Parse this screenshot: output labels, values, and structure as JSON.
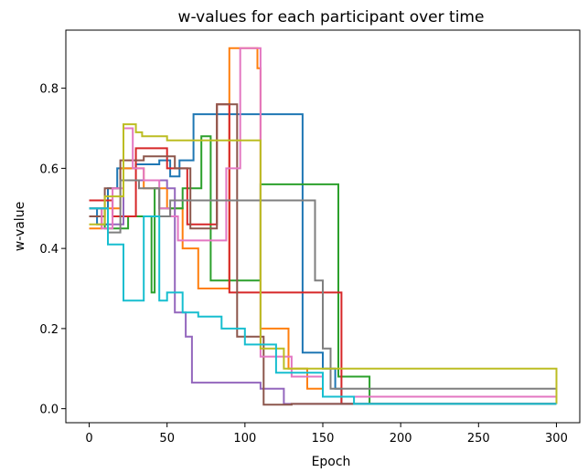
{
  "chart_data": {
    "type": "line",
    "title": "w-values for each participant over time",
    "xlabel": "Epoch",
    "ylabel": "w-value",
    "xlim": [
      -15,
      315
    ],
    "ylim": [
      -0.035,
      0.945
    ],
    "xticks": [
      0,
      50,
      100,
      150,
      200,
      250,
      300
    ],
    "yticks": [
      0.0,
      0.2,
      0.4,
      0.6,
      0.8
    ],
    "ytick_labels": [
      "0.0",
      "0.2",
      "0.4",
      "0.6",
      "0.8"
    ],
    "grid": false,
    "legend": "none",
    "step": true,
    "series": [
      {
        "color": "#1f77b4",
        "x": [
          0,
          5,
          12,
          18,
          30,
          45,
          52,
          58,
          67,
          85,
          105,
          135,
          137,
          141,
          150,
          158,
          162,
          300
        ],
        "y": [
          0.5,
          0.46,
          0.55,
          0.6,
          0.61,
          0.62,
          0.58,
          0.62,
          0.735,
          0.735,
          0.735,
          0.735,
          0.14,
          0.14,
          0.1,
          0.05,
          0.012,
          0.012
        ]
      },
      {
        "color": "#ff7f0e",
        "x": [
          0,
          8,
          20,
          35,
          50,
          60,
          70,
          90,
          100,
          108,
          110,
          128,
          140,
          150,
          300
        ],
        "y": [
          0.45,
          0.5,
          0.6,
          0.55,
          0.5,
          0.4,
          0.3,
          0.9,
          0.9,
          0.85,
          0.2,
          0.1,
          0.05,
          0.03,
          0.012
        ]
      },
      {
        "color": "#2ca02c",
        "x": [
          0,
          10,
          25,
          40,
          42,
          45,
          60,
          70,
          72,
          75,
          78,
          100,
          110,
          158,
          160,
          170,
          180,
          300
        ],
        "y": [
          0.5,
          0.45,
          0.48,
          0.29,
          0.55,
          0.5,
          0.55,
          0.55,
          0.68,
          0.68,
          0.32,
          0.32,
          0.56,
          0.56,
          0.08,
          0.08,
          0.012,
          0.012
        ]
      },
      {
        "color": "#d62728",
        "x": [
          0,
          10,
          15,
          30,
          50,
          63,
          78,
          82,
          86,
          90,
          95,
          110,
          140,
          145,
          160,
          162,
          300
        ],
        "y": [
          0.52,
          0.52,
          0.48,
          0.65,
          0.6,
          0.46,
          0.46,
          0.76,
          0.76,
          0.29,
          0.29,
          0.29,
          0.29,
          0.29,
          0.29,
          0.012,
          0.012
        ]
      },
      {
        "color": "#9467bd",
        "x": [
          0,
          12,
          22,
          35,
          50,
          55,
          62,
          66,
          80,
          90,
          110,
          125,
          300
        ],
        "y": [
          0.5,
          0.46,
          0.57,
          0.57,
          0.55,
          0.24,
          0.18,
          0.065,
          0.065,
          0.065,
          0.05,
          0.012,
          0.012
        ]
      },
      {
        "color": "#8c564b",
        "x": [
          0,
          10,
          20,
          35,
          48,
          55,
          65,
          78,
          82,
          85,
          95,
          110,
          112,
          130,
          300
        ],
        "y": [
          0.48,
          0.55,
          0.62,
          0.63,
          0.63,
          0.6,
          0.45,
          0.45,
          0.76,
          0.76,
          0.18,
          0.18,
          0.01,
          0.012,
          0.012
        ]
      },
      {
        "color": "#e377c2",
        "x": [
          0,
          8,
          15,
          22,
          28,
          35,
          45,
          52,
          57,
          62,
          88,
          92,
          97,
          101,
          110,
          130,
          150,
          300
        ],
        "y": [
          0.5,
          0.45,
          0.55,
          0.7,
          0.6,
          0.57,
          0.5,
          0.48,
          0.42,
          0.42,
          0.6,
          0.6,
          0.9,
          0.9,
          0.13,
          0.08,
          0.03,
          0.012
        ]
      },
      {
        "color": "#7f7f7f",
        "x": [
          0,
          12,
          20,
          32,
          45,
          52,
          56,
          60,
          80,
          100,
          120,
          143,
          145,
          150,
          155,
          300
        ],
        "y": [
          0.5,
          0.44,
          0.57,
          0.55,
          0.48,
          0.52,
          0.52,
          0.52,
          0.52,
          0.52,
          0.52,
          0.52,
          0.32,
          0.15,
          0.05,
          0.012
        ]
      },
      {
        "color": "#bcbd22",
        "x": [
          0,
          10,
          22,
          30,
          34,
          38,
          50,
          65,
          90,
          105,
          110,
          125,
          300
        ],
        "y": [
          0.46,
          0.53,
          0.71,
          0.69,
          0.68,
          0.68,
          0.67,
          0.67,
          0.67,
          0.67,
          0.15,
          0.1,
          0.012
        ]
      },
      {
        "color": "#17becf",
        "x": [
          0,
          12,
          22,
          35,
          45,
          50,
          60,
          70,
          85,
          100,
          120,
          150,
          170,
          300
        ],
        "y": [
          0.5,
          0.41,
          0.27,
          0.48,
          0.27,
          0.29,
          0.24,
          0.23,
          0.2,
          0.16,
          0.09,
          0.03,
          0.012,
          0.012
        ]
      }
    ]
  }
}
